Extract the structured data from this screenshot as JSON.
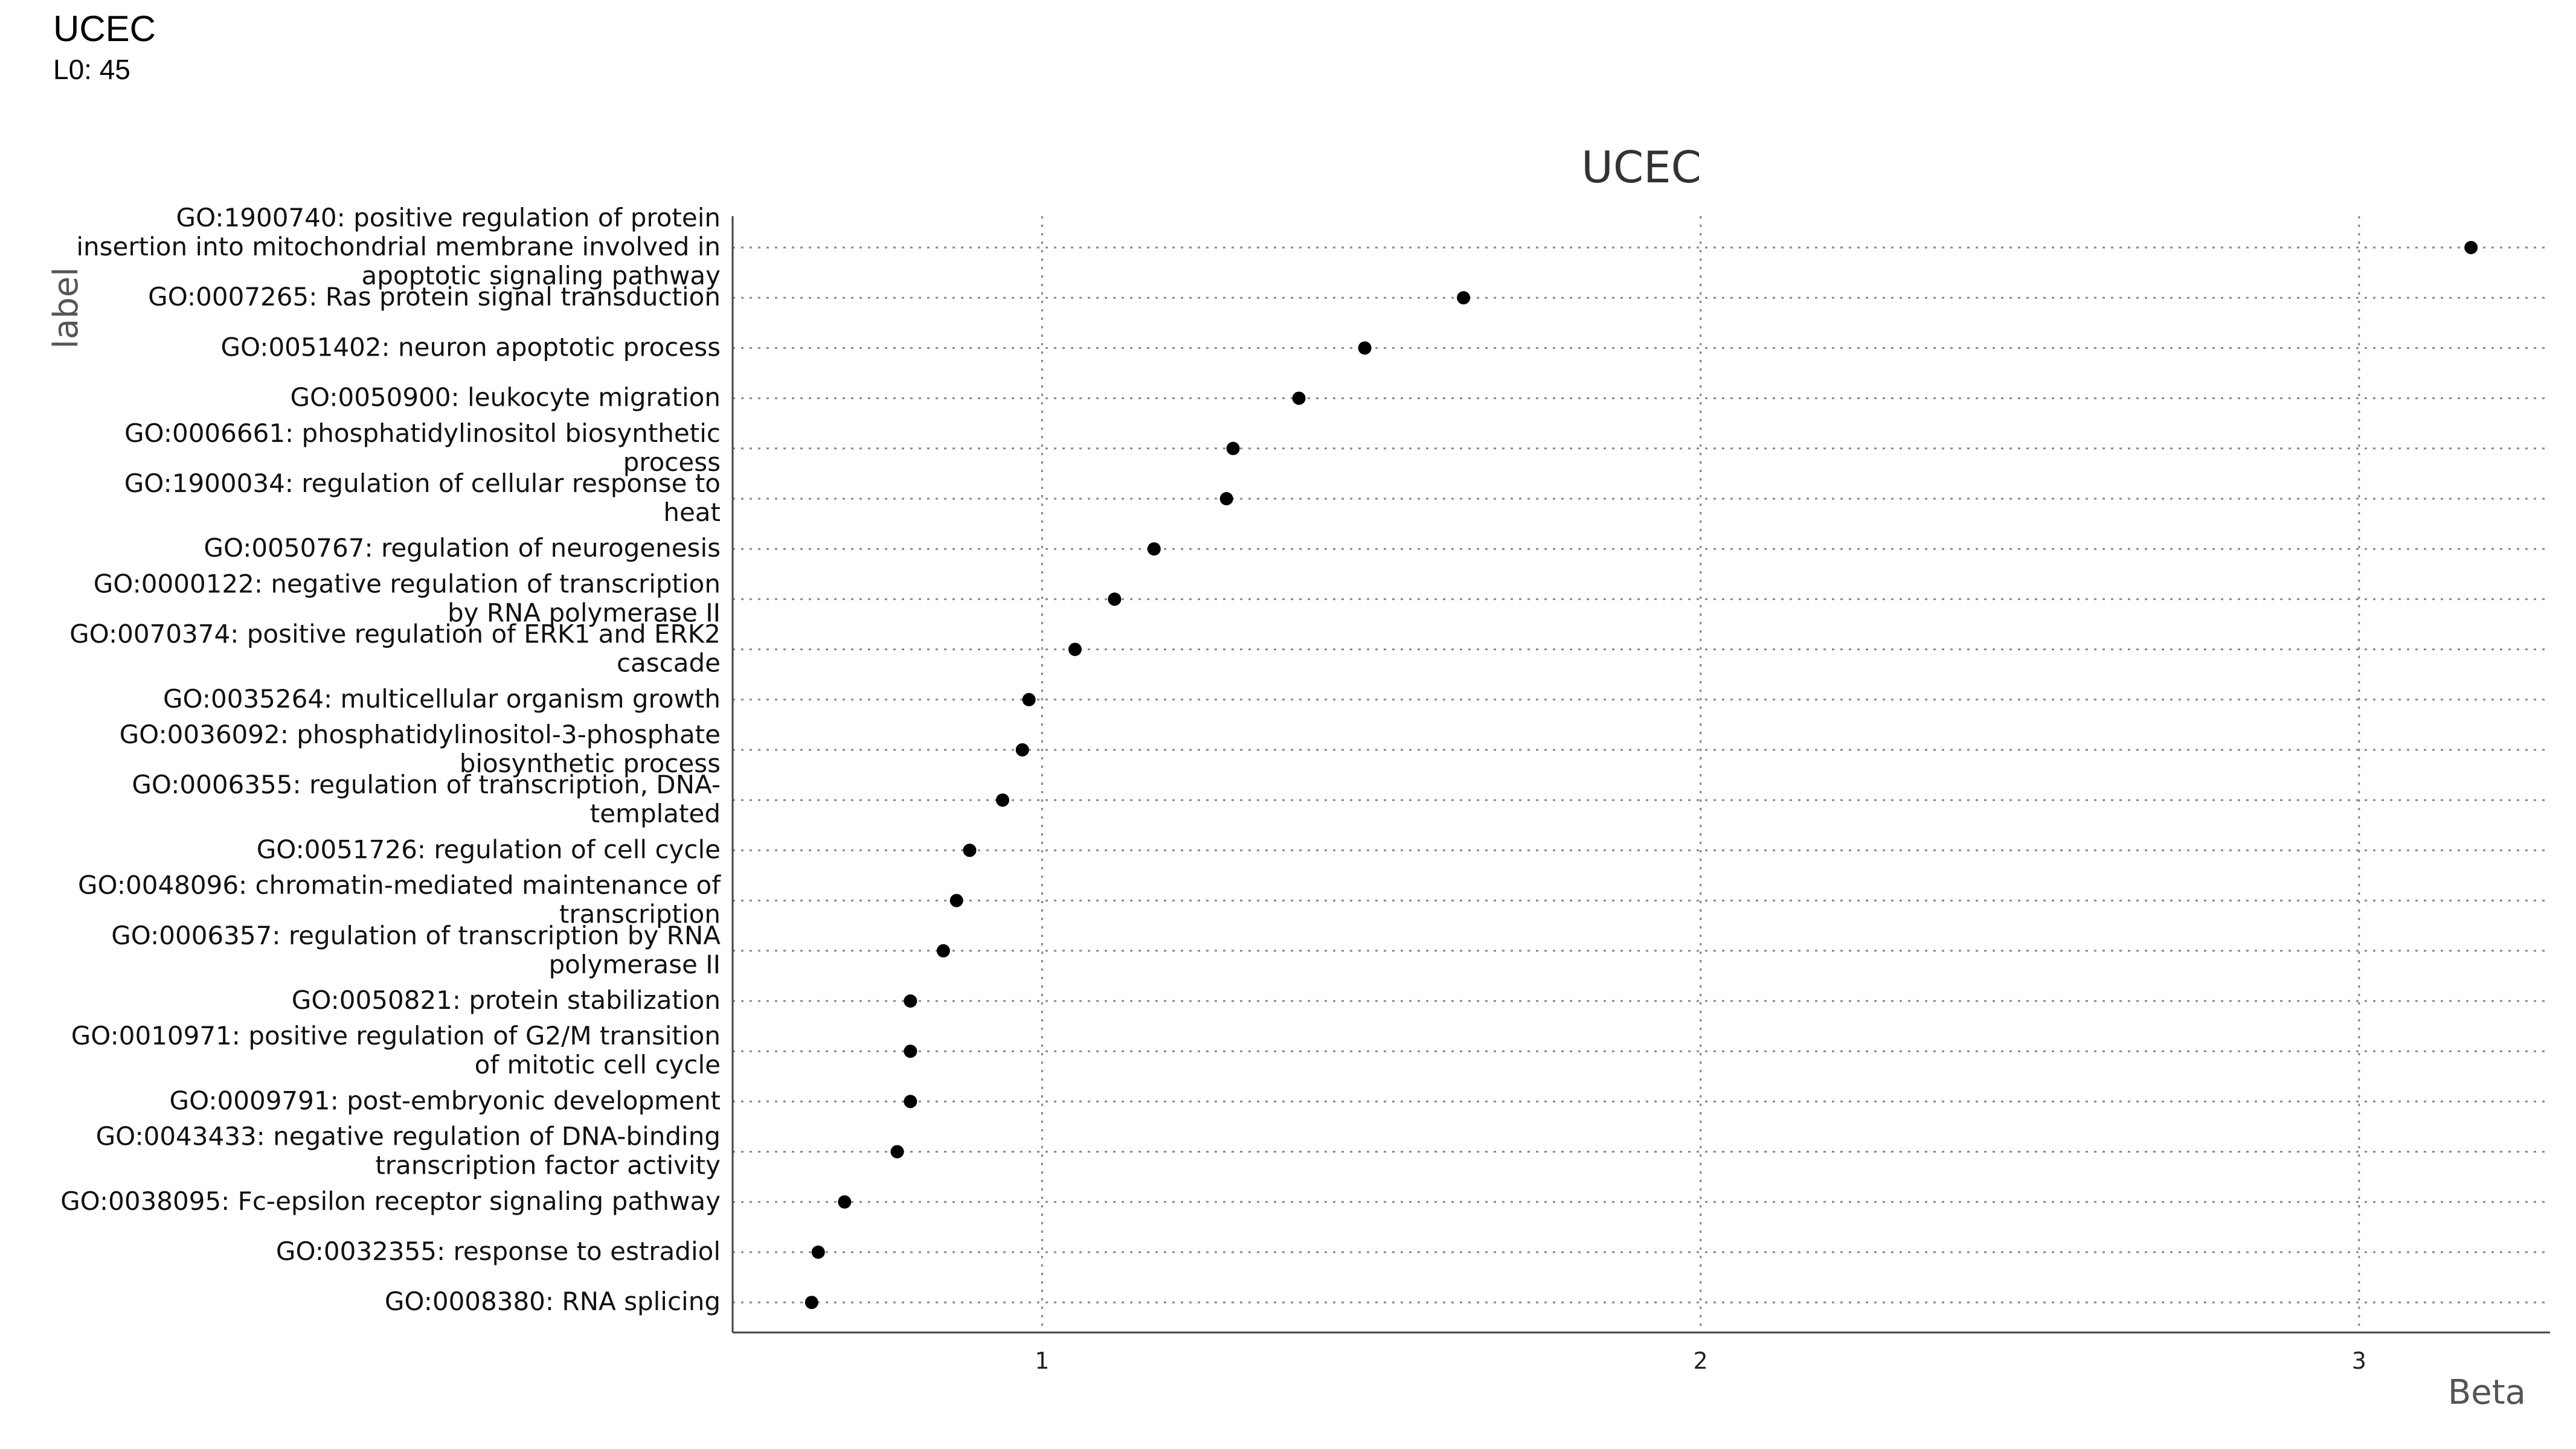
{
  "header": {
    "title": "UCEC",
    "subtitle": "L0: 45"
  },
  "chart_data": {
    "type": "scatter",
    "title": "UCEC",
    "xlabel": "Beta",
    "ylabel": "label",
    "xlim": [
      0.53,
      3.29
    ],
    "x_ticks": [
      1,
      2,
      3
    ],
    "grid": true,
    "point_color": "#000000",
    "categories": [
      "GO:1900740: positive regulation of protein insertion into mitochondrial membrane involved in apoptotic signaling pathway",
      "GO:0007265: Ras protein signal transduction",
      "GO:0051402: neuron apoptotic process",
      "GO:0050900: leukocyte migration",
      "GO:0006661: phosphatidylinositol biosynthetic process",
      "GO:1900034: regulation of cellular response to heat",
      "GO:0050767: regulation of neurogenesis",
      "GO:0000122: negative regulation of transcription by RNA polymerase II",
      "GO:0070374: positive regulation of ERK1 and ERK2 cascade",
      "GO:0035264: multicellular organism growth",
      "GO:0036092: phosphatidylinositol-3-phosphate biosynthetic process",
      "GO:0006355: regulation of transcription, DNA-templated",
      "GO:0051726: regulation of cell cycle",
      "GO:0048096: chromatin-mediated maintenance of transcription",
      "GO:0006357: regulation of transcription by RNA polymerase II",
      "GO:0050821: protein stabilization",
      "GO:0010971: positive regulation of G2/M transition of mitotic cell cycle",
      "GO:0009791: post-embryonic development",
      "GO:0043433: negative regulation of DNA-binding transcription factor activity",
      "GO:0038095: Fc-epsilon receptor signaling pathway",
      "GO:0032355: response to estradiol",
      "GO:0008380: RNA splicing"
    ],
    "label_lines": [
      [
        "GO:1900740: positive regulation of protein",
        "insertion into mitochondrial membrane involved in",
        "apoptotic signaling pathway"
      ],
      [
        "GO:0007265: Ras protein signal transduction"
      ],
      [
        "GO:0051402: neuron apoptotic process"
      ],
      [
        "GO:0050900: leukocyte migration"
      ],
      [
        "GO:0006661: phosphatidylinositol biosynthetic",
        "process"
      ],
      [
        "GO:1900034: regulation of cellular response to",
        "heat"
      ],
      [
        "GO:0050767: regulation of neurogenesis"
      ],
      [
        "GO:0000122: negative regulation of transcription",
        "by RNA polymerase II"
      ],
      [
        "GO:0070374: positive regulation of ERK1 and ERK2",
        "cascade"
      ],
      [
        "GO:0035264: multicellular organism growth"
      ],
      [
        "GO:0036092: phosphatidylinositol-3-phosphate",
        "biosynthetic process"
      ],
      [
        "GO:0006355: regulation of transcription, DNA-",
        "templated"
      ],
      [
        "GO:0051726: regulation of cell cycle"
      ],
      [
        "GO:0048096: chromatin-mediated maintenance of",
        "transcription"
      ],
      [
        "GO:0006357: regulation of transcription by RNA",
        "polymerase II"
      ],
      [
        "GO:0050821: protein stabilization"
      ],
      [
        "GO:0010971: positive regulation of G2/M transition",
        "of mitotic cell cycle"
      ],
      [
        "GO:0009791: post-embryonic development"
      ],
      [
        "GO:0043433: negative regulation of DNA-binding",
        "transcription factor activity"
      ],
      [
        "GO:0038095: Fc-epsilon receptor signaling pathway"
      ],
      [
        "GO:0032355: response to estradiol"
      ],
      [
        "GO:0008380: RNA splicing"
      ]
    ],
    "values": [
      3.17,
      1.64,
      1.49,
      1.39,
      1.29,
      1.28,
      1.17,
      1.11,
      1.05,
      0.98,
      0.97,
      0.94,
      0.89,
      0.87,
      0.85,
      0.8,
      0.8,
      0.8,
      0.78,
      0.7,
      0.66,
      0.65
    ]
  }
}
